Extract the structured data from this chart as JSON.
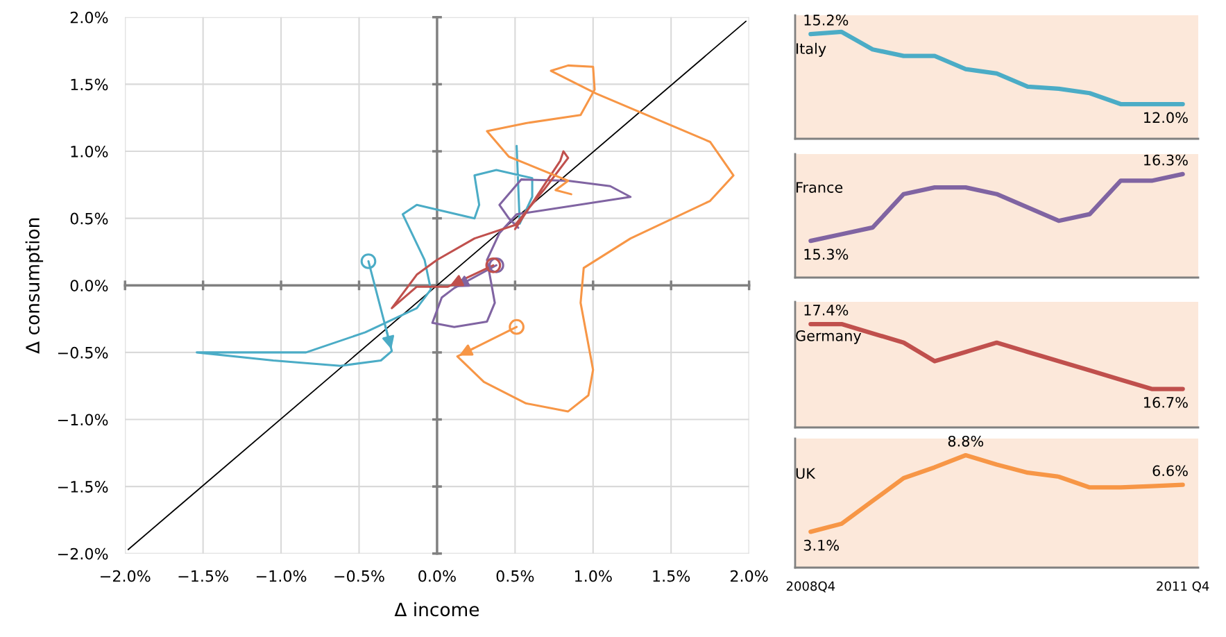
{
  "chart_data": [
    {
      "type": "line",
      "xlabel": "Δ income",
      "ylabel": "Δ consumption",
      "xlim": [
        -2,
        2
      ],
      "ylim": [
        -2,
        2
      ],
      "xticks": [
        {
          "value": -2,
          "label": "−2.0%"
        },
        {
          "value": -1.5,
          "label": "−1.5%"
        },
        {
          "value": -1,
          "label": "−1.0%"
        },
        {
          "value": -0.5,
          "label": "−0.5%"
        },
        {
          "value": 0,
          "label": "0.0%"
        },
        {
          "value": 0.5,
          "label": "0.5%"
        },
        {
          "value": 1,
          "label": "1.0%"
        },
        {
          "value": 1.5,
          "label": "1.5%"
        },
        {
          "value": 2,
          "label": "2.0%"
        }
      ],
      "yticks": [
        {
          "value": -2,
          "label": "−2.0%"
        },
        {
          "value": -1.5,
          "label": "−1.5%"
        },
        {
          "value": -1,
          "label": "−1.0%"
        },
        {
          "value": -0.5,
          "label": "−0.5%"
        },
        {
          "value": 0,
          "label": "0.0%"
        },
        {
          "value": 0.5,
          "label": "0.5%"
        },
        {
          "value": 1,
          "label": "1.0%"
        },
        {
          "value": 1.5,
          "label": "1.5%"
        },
        {
          "value": 2,
          "label": "2.0%"
        }
      ],
      "grid": true,
      "series": [
        {
          "color": "#000000",
          "x": [
            -1.98,
            1.98
          ],
          "values": [
            -1.97,
            1.97
          ]
        },
        {
          "color": "#4bacc6",
          "x": [
            -0.44,
            -0.29,
            -0.36,
            -0.62,
            -1.05,
            -1.54,
            -0.84,
            -0.46,
            -0.13,
            -0.04,
            -0.08,
            -0.22,
            -0.13,
            0.24,
            0.27,
            0.24,
            0.38,
            0.61,
            0.61,
            0.53,
            0.51
          ],
          "values": [
            0.18,
            -0.49,
            -0.56,
            -0.6,
            -0.56,
            -0.5,
            -0.5,
            -0.35,
            -0.17,
            -0.03,
            0.19,
            0.53,
            0.6,
            0.5,
            0.6,
            0.82,
            0.86,
            0.8,
            0.66,
            0.46,
            1.04
          ]
        },
        {
          "color": "#8064a2",
          "x": [
            0.38,
            0.11,
            0.03,
            -0.03,
            0.11,
            0.32,
            0.37,
            0.32,
            0.4,
            0.51,
            1.24,
            1.11,
            0.84,
            0.54,
            0.4,
            0.46,
            0.52
          ],
          "values": [
            0.15,
            -0.02,
            -0.09,
            -0.28,
            -0.31,
            -0.27,
            -0.13,
            0.19,
            0.39,
            0.53,
            0.66,
            0.74,
            0.78,
            0.79,
            0.6,
            0.5,
            0.43
          ]
        },
        {
          "color": "#c0504d",
          "x": [
            0.36,
            0.07,
            -0.13,
            -0.29,
            -0.13,
            0.0,
            0.24,
            0.5,
            0.69,
            0.84,
            0.81,
            0.79,
            0.5
          ],
          "values": [
            0.15,
            -0.01,
            -0.01,
            -0.17,
            0.08,
            0.19,
            0.35,
            0.45,
            0.72,
            0.95,
            1.0,
            0.93,
            0.42
          ]
        },
        {
          "color": "#f79646",
          "x": [
            0.51,
            0.13,
            0.3,
            0.57,
            0.84,
            0.97,
            1.0,
            0.92,
            0.94,
            1.24,
            1.75,
            1.9,
            1.75,
            1.02,
            0.73,
            0.84,
            1.0,
            1.01,
            0.92,
            0.57,
            0.32,
            0.46,
            0.84,
            0.76,
            0.86
          ],
          "values": [
            -0.31,
            -0.53,
            -0.72,
            -0.88,
            -0.94,
            -0.82,
            -0.63,
            -0.13,
            0.13,
            0.35,
            0.63,
            0.82,
            1.07,
            1.43,
            1.6,
            1.64,
            1.63,
            1.46,
            1.27,
            1.21,
            1.15,
            0.96,
            0.78,
            0.71,
            0.68
          ]
        },
        {
          "type": "scatter",
          "marker": "circle",
          "color": "#4bacc6",
          "x": [
            -0.44
          ],
          "values": [
            0.18
          ]
        },
        {
          "type": "scatter",
          "marker": "circle",
          "color": "#8064a2",
          "x": [
            0.38
          ],
          "values": [
            0.15
          ]
        },
        {
          "type": "scatter",
          "marker": "circle",
          "color": "#c0504d",
          "x": [
            0.36
          ],
          "values": [
            0.15
          ]
        },
        {
          "type": "scatter",
          "marker": "circle",
          "color": "#f79646",
          "x": [
            0.51
          ],
          "values": [
            -0.31
          ]
        }
      ]
    },
    {
      "type": "line",
      "title": "Italy",
      "tick_labels": false,
      "categories": [
        null,
        null,
        null,
        null,
        null,
        null,
        null,
        null,
        null,
        null,
        null,
        null,
        null
      ],
      "series": [
        {
          "color": "#4bacc6",
          "values": [
            15.2,
            15.3,
            14.5,
            14.2,
            14.2,
            13.6,
            13.4,
            12.8,
            12.7,
            12.5,
            12.0,
            12.0,
            12.0
          ],
          "value_labels": [
            "15.2%",
            null,
            null,
            null,
            null,
            null,
            null,
            null,
            null,
            null,
            null,
            null,
            "12.0%"
          ]
        }
      ]
    },
    {
      "type": "line",
      "title": "France",
      "tick_labels": false,
      "categories": [
        null,
        null,
        null,
        null,
        null,
        null,
        null,
        null,
        null,
        null,
        null,
        null,
        null
      ],
      "series": [
        {
          "color": "#8064a2",
          "values": [
            15.3,
            15.4,
            15.5,
            16.0,
            16.1,
            16.1,
            16.0,
            15.8,
            15.6,
            15.7,
            16.2,
            16.2,
            16.3
          ],
          "value_labels": [
            "15.3%",
            null,
            null,
            null,
            null,
            null,
            null,
            null,
            null,
            null,
            null,
            null,
            "16.3%"
          ]
        }
      ]
    },
    {
      "type": "line",
      "title": "Germany",
      "tick_labels": false,
      "categories": [
        null,
        null,
        null,
        null,
        null,
        null,
        null,
        null,
        null,
        null,
        null,
        null,
        null
      ],
      "series": [
        {
          "color": "#c0504d",
          "values": [
            17.4,
            17.4,
            17.3,
            17.2,
            17.0,
            17.1,
            17.2,
            17.1,
            17.0,
            16.9,
            16.8,
            16.7,
            16.7
          ],
          "value_labels": [
            "17.4%",
            null,
            null,
            null,
            null,
            null,
            null,
            null,
            null,
            null,
            null,
            null,
            "16.7%"
          ]
        }
      ]
    },
    {
      "type": "line",
      "title": "UK",
      "tick_labels": "x",
      "categories": [
        "2008Q4",
        null,
        null,
        null,
        null,
        null,
        null,
        null,
        null,
        null,
        null,
        null,
        "2011 Q4"
      ],
      "series": [
        {
          "color": "#f79646",
          "values": [
            3.1,
            3.7,
            5.4,
            7.1,
            7.9,
            8.8,
            8.1,
            7.5,
            7.2,
            6.4,
            6.4,
            6.5,
            6.6
          ],
          "value_labels": [
            "3.1%",
            null,
            null,
            null,
            null,
            "8.8%",
            null,
            null,
            null,
            null,
            null,
            null,
            "6.6%"
          ]
        }
      ]
    }
  ]
}
